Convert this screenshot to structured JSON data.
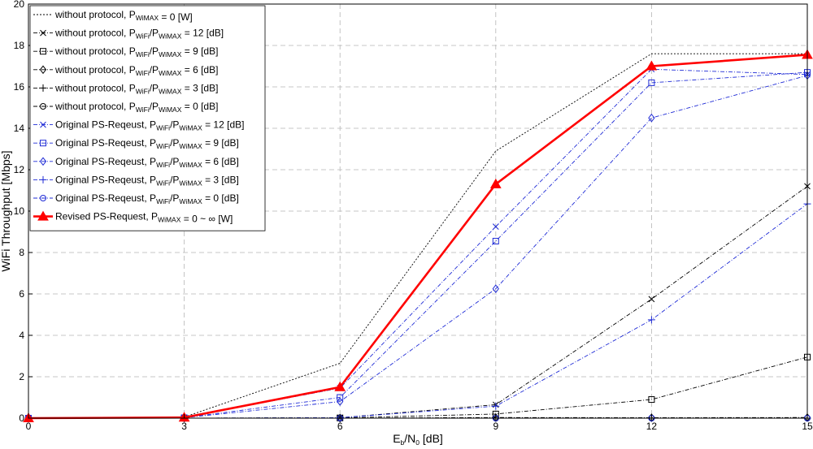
{
  "chart_data": {
    "type": "line",
    "xlabel": {
      "main": "E",
      "sub1": "b",
      "mid": "/N",
      "sub2": "0",
      "tail": " [dB]"
    },
    "ylabel": "WiFi Throughput [Mbps]",
    "x": [
      0,
      3,
      6,
      9,
      12,
      15
    ],
    "xlim": [
      0,
      15
    ],
    "ylim": [
      0,
      20
    ],
    "xticks": [
      "0",
      "3",
      "6",
      "9",
      "12",
      "15"
    ],
    "yticks": [
      "0",
      "2",
      "4",
      "6",
      "8",
      "10",
      "12",
      "14",
      "16",
      "18",
      "20"
    ],
    "grid": true,
    "legend_position": "top-left",
    "series": [
      {
        "pre": "without protocol, P",
        "sub1": "WiMAX",
        "mid": "",
        "sub2": "",
        "post": " = 0 [W]",
        "color": "#000000",
        "marker": "none",
        "dash": "2,2",
        "width": 0.9,
        "values": [
          0,
          0.05,
          2.65,
          12.9,
          17.6,
          17.6
        ]
      },
      {
        "pre": "without protocol, P",
        "sub1": "WiFi",
        "mid": "/P",
        "sub2": "WiMAX",
        "post": " = 12 [dB]",
        "color": "#000000",
        "marker": "x",
        "dash": "5,2,1,2",
        "width": 0.9,
        "values": [
          0,
          0,
          0.02,
          0.65,
          5.75,
          11.2
        ]
      },
      {
        "pre": "without protocol, P",
        "sub1": "WiFi",
        "mid": "/P",
        "sub2": "WiMAX",
        "post": " = 9 [dB]",
        "color": "#000000",
        "marker": "square",
        "dash": "5,2,1,2",
        "width": 0.9,
        "values": [
          0,
          0,
          0.01,
          0.2,
          0.9,
          2.95
        ]
      },
      {
        "pre": "without protocol, P",
        "sub1": "WiFi",
        "mid": "/P",
        "sub2": "WiMAX",
        "post": " = 6 [dB]",
        "color": "#000000",
        "marker": "diamond",
        "dash": "5,2,1,2",
        "width": 0.9,
        "values": [
          0,
          0,
          0,
          0.03,
          0.02,
          0.03
        ]
      },
      {
        "pre": "without protocol, P",
        "sub1": "WiFi",
        "mid": "/P",
        "sub2": "WiMAX",
        "post": " = 3 [dB]",
        "color": "#000000",
        "marker": "plus",
        "dash": "5,2,1,2",
        "width": 0.9,
        "values": [
          0,
          0,
          0,
          0,
          0,
          0
        ]
      },
      {
        "pre": "without protocol, P",
        "sub1": "WiFi",
        "mid": "/P",
        "sub2": "WiMAX",
        "post": " = 0 [dB]",
        "color": "#000000",
        "marker": "circle",
        "dash": "5,2,1,2",
        "width": 0.9,
        "values": [
          0,
          0,
          0,
          0,
          0,
          0
        ]
      },
      {
        "pre": "Original PS-Reqeust, P",
        "sub1": "WiFi",
        "mid": "/P",
        "sub2": "WiMAX",
        "post": " = 12 [dB]",
        "color": "#1f2bd6",
        "marker": "x",
        "dash": "5,2,1,2",
        "width": 0.9,
        "values": [
          0,
          0.03,
          1.45,
          9.25,
          16.85,
          16.6
        ]
      },
      {
        "pre": "Original PS-Reqeust, P",
        "sub1": "WiFi",
        "mid": "/P",
        "sub2": "WiMAX",
        "post": " = 9 [dB]",
        "color": "#1f2bd6",
        "marker": "square",
        "dash": "5,2,1,2",
        "width": 0.9,
        "values": [
          0,
          0.02,
          1.0,
          8.55,
          16.2,
          16.7
        ]
      },
      {
        "pre": "Original PS-Reqeust, P",
        "sub1": "WiFi",
        "mid": "/P",
        "sub2": "WiMAX",
        "post": " = 6 [dB]",
        "color": "#1f2bd6",
        "marker": "diamond",
        "dash": "5,2,1,2",
        "width": 0.9,
        "values": [
          0,
          0.02,
          0.8,
          6.25,
          14.5,
          16.55
        ]
      },
      {
        "pre": "Original PS-Reqeust, P",
        "sub1": "WiFi",
        "mid": "/P",
        "sub2": "WiMAX",
        "post": " = 3 [dB]",
        "color": "#1f2bd6",
        "marker": "plus",
        "dash": "5,2,1,2",
        "width": 0.9,
        "values": [
          0,
          0,
          0.02,
          0.58,
          4.75,
          10.35
        ]
      },
      {
        "pre": "Original PS-Reqeust, P",
        "sub1": "WiFi",
        "mid": "/P",
        "sub2": "WiMAX",
        "post": " = 0 [dB]",
        "color": "#1f2bd6",
        "marker": "circle",
        "dash": "5,2,1,2",
        "width": 0.9,
        "values": [
          0,
          0,
          0,
          0,
          0,
          0
        ]
      },
      {
        "pre": "Revised PS-Request, P",
        "sub1": "WiMAX",
        "mid": "",
        "sub2": "",
        "post": " = 0 ~ ∞ [W]",
        "color": "#ff0000",
        "marker": "triangle",
        "dash": "",
        "width": 2.6,
        "values": [
          0,
          0.03,
          1.5,
          11.3,
          17.0,
          17.55
        ]
      }
    ]
  }
}
